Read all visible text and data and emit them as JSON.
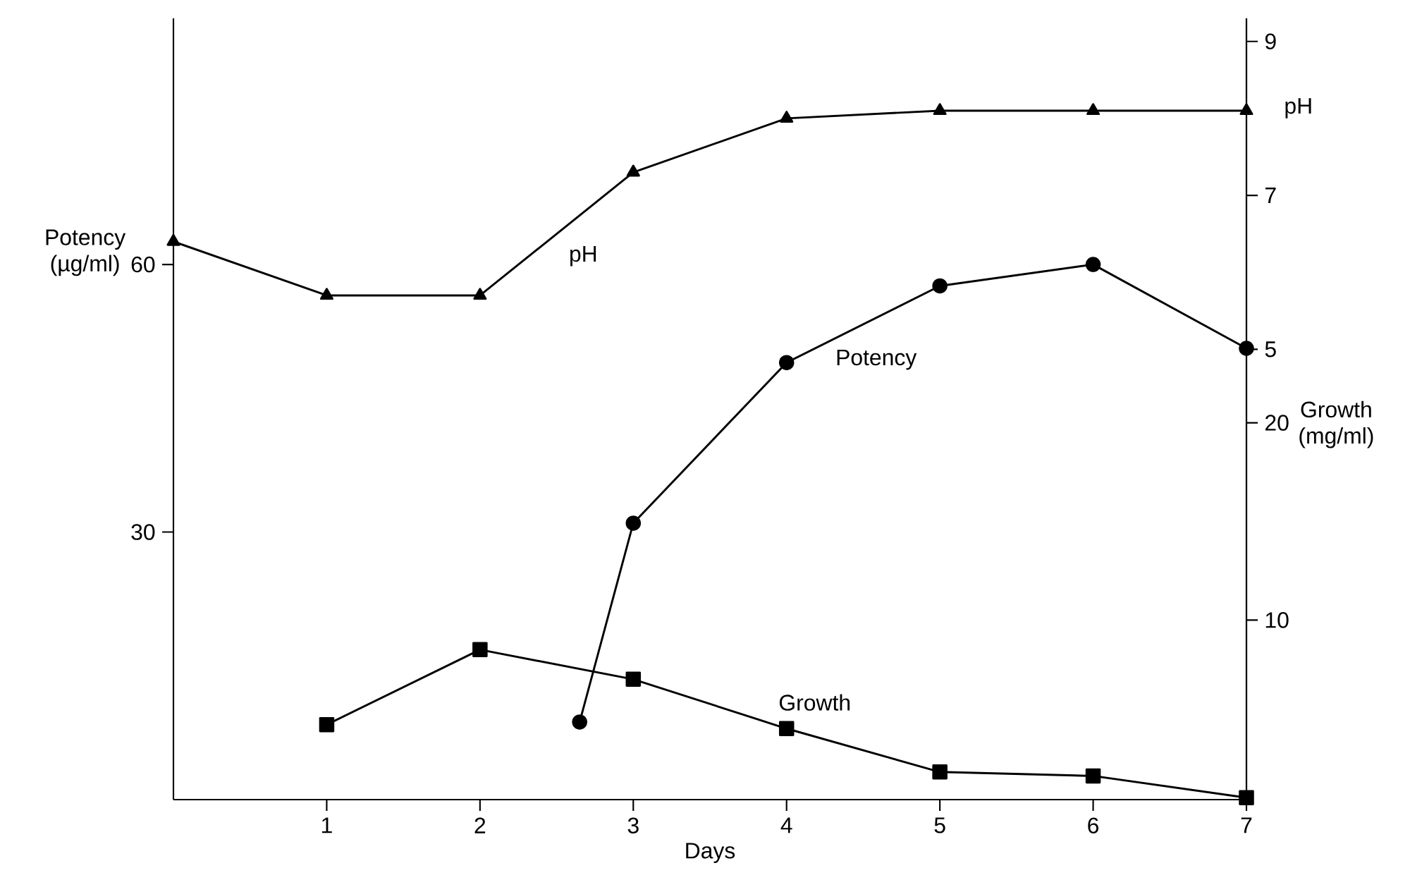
{
  "chart_data": {
    "type": "line",
    "xlabel": "Days",
    "ylabel": "Potency (µg/ml)",
    "y2label": "pH",
    "y3label": "Growth (mg/ml)",
    "xlim": [
      0,
      7
    ],
    "xticks": [
      1,
      2,
      3,
      4,
      5,
      6,
      7
    ],
    "ylim": [
      0,
      87.6
    ],
    "yticks": [
      30,
      60
    ],
    "y2lim": [
      -0.85,
      9.3
    ],
    "y2ticks": [
      5,
      7,
      9
    ],
    "y3lim": [
      0.9,
      40.5
    ],
    "y3ticks": [
      10,
      20
    ],
    "grid": false,
    "line_style": "solid",
    "series": [
      {
        "name": "pH",
        "axis": "y2",
        "marker": "triangle",
        "color": "#000000",
        "x": [
          0,
          1,
          2,
          3,
          4,
          5,
          6,
          7
        ],
        "values": [
          6.4,
          5.7,
          5.7,
          7.3,
          8.0,
          8.1,
          8.1,
          8.1
        ]
      },
      {
        "name": "Potency",
        "axis": "y",
        "marker": "circle",
        "color": "#000000",
        "x": [
          2.65,
          3,
          4,
          5,
          6,
          7
        ],
        "values": [
          8.7,
          31,
          49,
          57.6,
          60,
          50.6
        ]
      },
      {
        "name": "Growth",
        "axis": "y3",
        "marker": "square",
        "color": "#000000",
        "x": [
          1,
          2,
          3,
          4,
          5,
          6,
          7
        ],
        "values": [
          4.7,
          8.5,
          7.0,
          4.5,
          2.3,
          2.1,
          1.0
        ]
      }
    ]
  }
}
